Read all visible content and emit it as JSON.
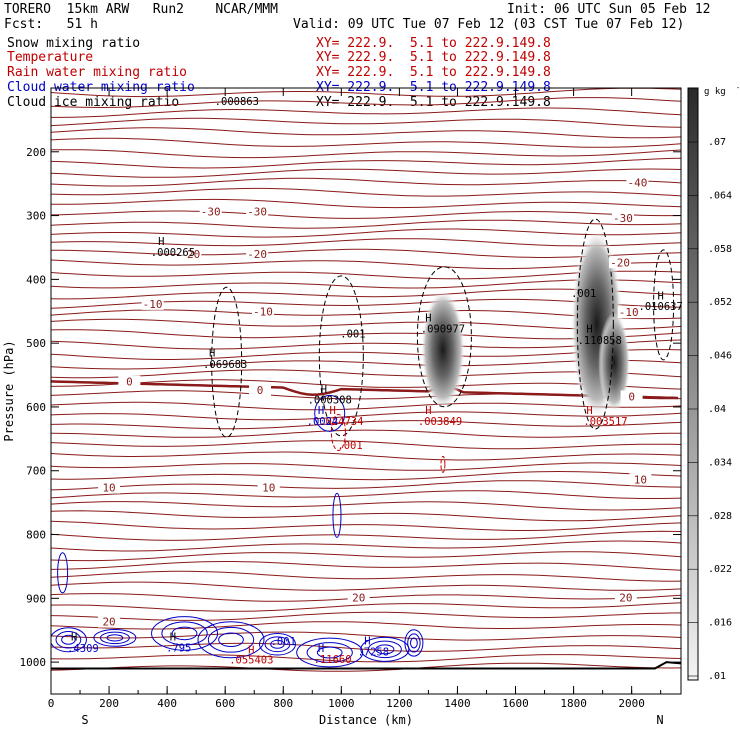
{
  "header": {
    "title_left": "TORERO  15km ARW   Run2    NCAR/MMM",
    "init": "Init: 06 UTC Sun 05 Feb 12",
    "fcst": "Fcst:   51 h",
    "valid": "Valid: 09 UTC Tue 07 Feb 12 (03 CST Tue 07 Feb 12)"
  },
  "legend": [
    {
      "label": "Snow mixing ratio",
      "xy": "XY= 222.9.  5.1 to 222.9.149.8",
      "color": "#000000"
    },
    {
      "label": "Temperature",
      "xy": "XY= 222.9.  5.1 to 222.9.149.8",
      "color": "#c00000"
    },
    {
      "label": "Rain water mixing ratio",
      "xy": "XY= 222.9.  5.1 to 222.9.149.8",
      "color": "#c00000"
    },
    {
      "label": "Cloud water mixing ratio",
      "xy": "XY= 222.9.  5.1 to 222.9.149.8",
      "color": "#0000c8"
    },
    {
      "label": "Cloud ice mixing ratio",
      "xy": "XY= 222.9.  5.1 to 222.9.149.8",
      "color": "#000000"
    }
  ],
  "chart_data": {
    "type": "contour",
    "xlabel": "Distance (km)",
    "ylabel": "Pressure (hPa)",
    "xlim": [
      0,
      2170
    ],
    "ylim": [
      1050,
      100
    ],
    "x_ticks": [
      0,
      200,
      400,
      600,
      800,
      1000,
      1200,
      1400,
      1600,
      1800,
      2000
    ],
    "y_ticks": [
      200,
      300,
      400,
      500,
      600,
      700,
      800,
      900,
      1000
    ],
    "x_end_labels": {
      "left": "S",
      "right": "N"
    },
    "colorbar": {
      "unit": "g kg",
      "unit_exp": "-1",
      "levels": [
        ".07",
        ".064",
        ".058",
        ".052",
        ".046",
        ".04",
        ".034",
        ".028",
        ".022",
        ".016",
        ".01"
      ]
    },
    "isotherm_labels": [
      {
        "text": "-40",
        "x": 2020,
        "p": 250
      },
      {
        "text": "-30",
        "x": 550,
        "p": 295
      },
      {
        "text": "-30",
        "x": 710,
        "p": 295
      },
      {
        "text": "-30",
        "x": 1970,
        "p": 305
      },
      {
        "text": "-20",
        "x": 480,
        "p": 362
      },
      {
        "text": "-20",
        "x": 710,
        "p": 362
      },
      {
        "text": "-20",
        "x": 1960,
        "p": 375
      },
      {
        "text": "-10",
        "x": 350,
        "p": 440
      },
      {
        "text": "-10",
        "x": 730,
        "p": 452
      },
      {
        "text": "-10",
        "x": 1990,
        "p": 453
      },
      {
        "text": "0",
        "x": 270,
        "p": 562
      },
      {
        "text": "0",
        "x": 720,
        "p": 575
      },
      {
        "text": "0",
        "x": 2000,
        "p": 585
      },
      {
        "text": "10",
        "x": 200,
        "p": 728
      },
      {
        "text": "10",
        "x": 750,
        "p": 728
      },
      {
        "text": "10",
        "x": 2030,
        "p": 715
      },
      {
        "text": "20",
        "x": 200,
        "p": 938
      },
      {
        "text": "20",
        "x": 1060,
        "p": 900
      },
      {
        "text": "20",
        "x": 1980,
        "p": 900
      }
    ],
    "annotations": [
      {
        "text": ".000863",
        "x": 640,
        "p": 120,
        "color": "#000000"
      },
      {
        "text": "H",
        "x": 380,
        "p": 340,
        "color": "#000000"
      },
      {
        "text": ".000265",
        "x": 420,
        "p": 357,
        "color": "#000000"
      },
      {
        "text": "H",
        "x": 555,
        "p": 515,
        "color": "#000000"
      },
      {
        "text": ".069683",
        "x": 600,
        "p": 533,
        "color": "#000000"
      },
      {
        "text": ".001",
        "x": 1040,
        "p": 485,
        "color": "#000000"
      },
      {
        "text": "H",
        "x": 940,
        "p": 572,
        "color": "#000000"
      },
      {
        "text": ".000308",
        "x": 960,
        "p": 588,
        "color": "#000000"
      },
      {
        "text": "H",
        "x": 1300,
        "p": 460,
        "color": "#000000"
      },
      {
        "text": ".090977",
        "x": 1350,
        "p": 477,
        "color": "#000000"
      },
      {
        "text": ".001",
        "x": 1835,
        "p": 421,
        "color": "#000000"
      },
      {
        "text": "H",
        "x": 1855,
        "p": 477,
        "color": "#000000"
      },
      {
        "text": ".110858",
        "x": 1890,
        "p": 495,
        "color": "#000000"
      },
      {
        "text": "H",
        "x": 2100,
        "p": 425,
        "color": "#000000"
      },
      {
        "text": ".010637",
        "x": 2100,
        "p": 442,
        "color": "#000000"
      },
      {
        "text": "H",
        "x": 970,
        "p": 605,
        "color": "#c00000"
      },
      {
        "text": ".024734",
        "x": 1000,
        "p": 622,
        "color": "#c00000"
      },
      {
        "text": ".001",
        "x": 1030,
        "p": 660,
        "color": "#c00000"
      },
      {
        "text": "H",
        "x": 1300,
        "p": 605,
        "color": "#c00000"
      },
      {
        "text": ".003849",
        "x": 1340,
        "p": 622,
        "color": "#c00000"
      },
      {
        "text": "H",
        "x": 1855,
        "p": 605,
        "color": "#c00000"
      },
      {
        "text": ".003517",
        "x": 1910,
        "p": 622,
        "color": "#c00000"
      },
      {
        "text": "H",
        "x": 930,
        "p": 605,
        "color": "#0000c8"
      },
      {
        "text": ".0024",
        "x": 935,
        "p": 622,
        "color": "#0000c8"
      },
      {
        "text": "H",
        "x": 80,
        "p": 960,
        "color": "#000000"
      },
      {
        "text": ".4309",
        "x": 110,
        "p": 978,
        "color": "#0000c8"
      },
      {
        "text": "H",
        "x": 420,
        "p": 960,
        "color": "#000000"
      },
      {
        "text": ".795",
        "x": 440,
        "p": 977,
        "color": "#0000c8"
      },
      {
        "text": ".001",
        "x": 800,
        "p": 967,
        "color": "#0000c8"
      },
      {
        "text": "H",
        "x": 690,
        "p": 980,
        "color": "#c00000"
      },
      {
        "text": ".055403",
        "x": 690,
        "p": 996,
        "color": "#c00000"
      },
      {
        "text": "H",
        "x": 1090,
        "p": 966,
        "color": "#0000c8"
      },
      {
        "text": ".7258",
        "x": 1110,
        "p": 983,
        "color": "#0000c8"
      },
      {
        "text": "H",
        "x": 930,
        "p": 978,
        "color": "#0000c8"
      },
      {
        "text": ".11660",
        "x": 970,
        "p": 995,
        "color": "#c00000"
      }
    ]
  }
}
